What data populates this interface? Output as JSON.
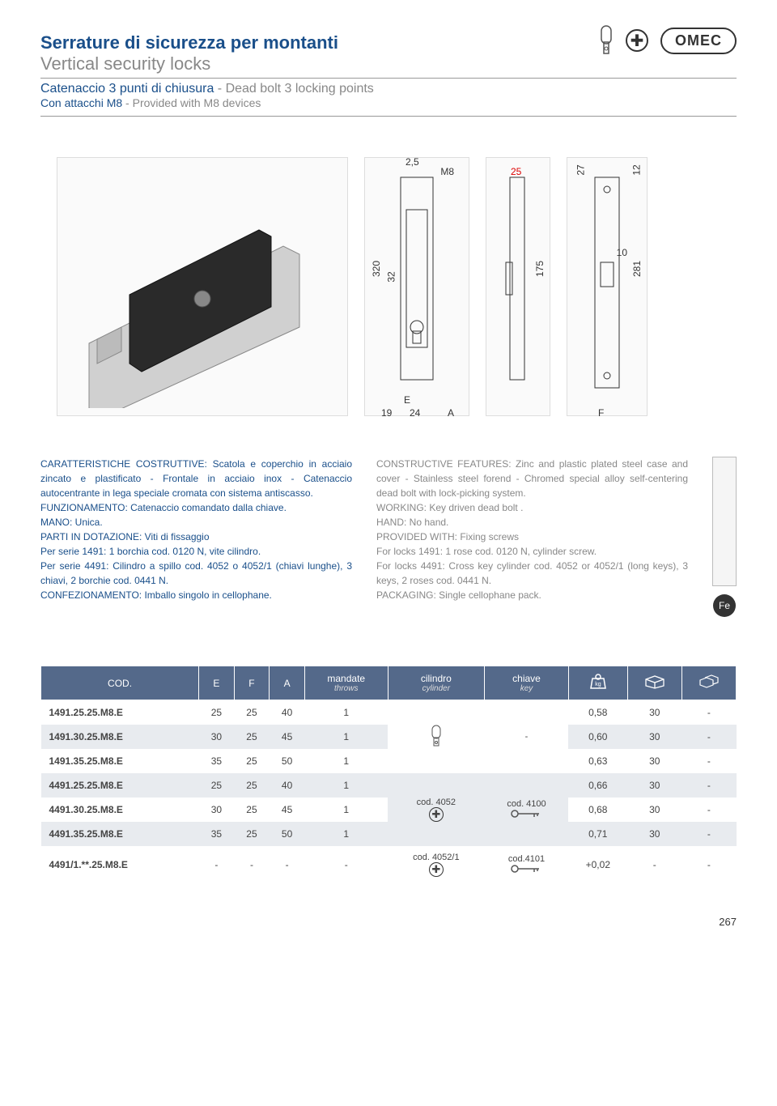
{
  "header": {
    "title_it": "Serrature di sicurezza per montanti",
    "title_en": "Vertical security locks",
    "sub_it": "Catenaccio 3 punti di chiusura",
    "sub_en": " - Dead bolt 3 locking points",
    "sub2_it": "Con attacchi M8",
    "sub2_en": " - Provided with M8 devices",
    "brand": "OMEC"
  },
  "dimensions": {
    "d1_h": "320",
    "d1_w1": "19",
    "d1_w2": "24",
    "d2_top": "2,5",
    "d2_m8": "M8",
    "d2_h32": "32",
    "d2_e": "E",
    "d2_a": "A",
    "d3_25": "25",
    "d3_175": "175",
    "d4_27": "27",
    "d4_12": "12",
    "d4_281": "281",
    "d4_10": "10",
    "d4_f": "F"
  },
  "features": {
    "it": [
      "CARATTERISTICHE COSTRUTTIVE: Scatola e coperchio in acciaio zincato e plastificato - Frontale in acciaio inox - Catenaccio autocentrante in lega speciale cromata con sistema antiscasso.",
      "FUNZIONAMENTO: Catenaccio comandato dalla chiave.",
      "MANO: Unica.",
      "PARTI IN DOTAZIONE: Viti di fissaggio",
      "Per serie 1491: 1 borchia cod. 0120 N, vite cilindro.",
      "Per serie 4491: Cilindro a spillo cod. 4052 o 4052/1 (chiavi lunghe), 3 chiavi, 2 borchie cod. 0441 N.",
      "CONFEZIONAMENTO: Imballo singolo in cellophane."
    ],
    "en": [
      "CONSTRUCTIVE FEATURES: Zinc and plastic plated steel case and cover - Stainless steel forend - Chromed special alloy self-centering dead bolt with lock-picking system.",
      "WORKING: Key driven dead bolt .",
      "HAND: No hand.",
      "PROVIDED WITH: Fixing screws",
      "For locks 1491: 1 rose cod. 0120 N, cylinder screw.",
      "For locks 4491: Cross key cylinder cod. 4052 or 4052/1 (long keys), 3 keys, 2 roses cod. 0441 N.",
      "PACKAGING: Single cellophane pack."
    ],
    "fe": "Fe"
  },
  "table": {
    "headers": {
      "cod": "COD.",
      "e": "E",
      "f": "F",
      "a": "A",
      "mandate": "mandate",
      "mandate_sub": "throws",
      "cilindro": "cilindro",
      "cilindro_sub": "cylinder",
      "chiave": "chiave",
      "chiave_sub": "key",
      "kg": "kg"
    },
    "rows": [
      {
        "cod": "1491.25.25.M8.E",
        "e": "25",
        "f": "25",
        "a": "40",
        "m": "1",
        "cil": "",
        "key": "-",
        "kg": "0,58",
        "box": "30",
        "multi": "-",
        "odd": false
      },
      {
        "cod": "1491.30.25.M8.E",
        "e": "30",
        "f": "25",
        "a": "45",
        "m": "1",
        "cil": "",
        "key": "",
        "kg": "0,60",
        "box": "30",
        "multi": "-",
        "odd": true
      },
      {
        "cod": "1491.35.25.M8.E",
        "e": "35",
        "f": "25",
        "a": "50",
        "m": "1",
        "cil": "",
        "key": "",
        "kg": "0,63",
        "box": "30",
        "multi": "-",
        "odd": false
      },
      {
        "cod": "4491.25.25.M8.E",
        "e": "25",
        "f": "25",
        "a": "40",
        "m": "1",
        "cil": "cod. 4052",
        "key": "cod. 4100",
        "kg": "0,66",
        "box": "30",
        "multi": "-",
        "odd": true
      },
      {
        "cod": "4491.30.25.M8.E",
        "e": "30",
        "f": "25",
        "a": "45",
        "m": "1",
        "cil": "",
        "key": "",
        "kg": "0,68",
        "box": "30",
        "multi": "-",
        "odd": false
      },
      {
        "cod": "4491.35.25.M8.E",
        "e": "35",
        "f": "25",
        "a": "50",
        "m": "1",
        "cil": "",
        "key": "",
        "kg": "0,71",
        "box": "30",
        "multi": "-",
        "odd": true
      },
      {
        "cod": "4491/1.**.25.M8.E",
        "e": "-",
        "f": "-",
        "a": "-",
        "m": "-",
        "cil": "cod. 4052/1",
        "key": "cod.4101",
        "kg": "+0,02",
        "box": "-",
        "multi": "-",
        "odd": false
      }
    ]
  },
  "page_number": "267"
}
